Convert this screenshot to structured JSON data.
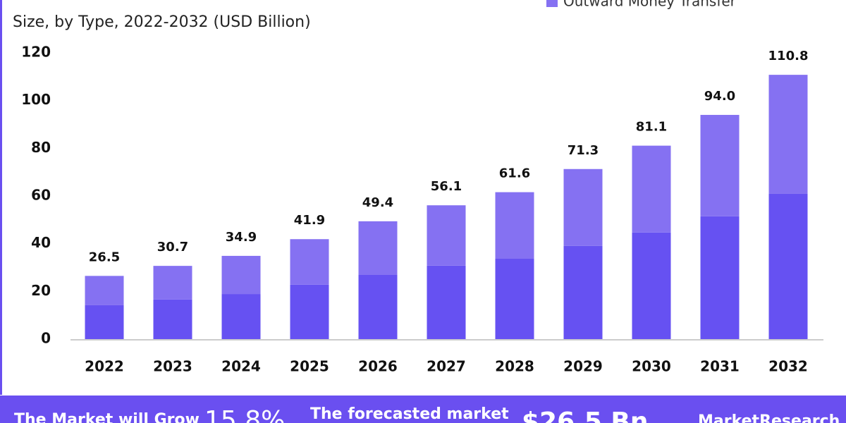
{
  "chart_data": {
    "type": "stacked_bar",
    "subtitle": "Size, by Type, 2022-2032 (USD Billion)",
    "categories": [
      "2022",
      "2023",
      "2024",
      "2025",
      "2026",
      "2027",
      "2028",
      "2029",
      "2030",
      "2031",
      "2032"
    ],
    "series": [
      {
        "color": "#6651f2",
        "values": [
          14.2,
          16.6,
          18.9,
          22.8,
          26.9,
          30.8,
          33.7,
          39.1,
          44.7,
          51.5,
          60.9
        ]
      },
      {
        "name": "Outward Money Transfer",
        "color": "#8571f2",
        "values": [
          12.3,
          14.1,
          16.0,
          19.1,
          22.5,
          25.3,
          27.9,
          32.2,
          36.4,
          42.5,
          49.9
        ]
      }
    ],
    "totals": [
      "26.5",
      "30.7",
      "34.9",
      "41.9",
      "49.4",
      "56.1",
      "61.6",
      "71.3",
      "81.1",
      "94.0",
      "110.8"
    ],
    "ylim": [
      0,
      120
    ],
    "yticks": [
      0,
      20,
      40,
      60,
      80,
      100,
      120
    ],
    "grid": false
  },
  "footer": {
    "grow_text": "The Market will Grow",
    "cagr": "15.8%",
    "forecast_text": "The forecasted market",
    "forecast_value": "$26.5 Bn",
    "brand": "MarketResearch"
  }
}
